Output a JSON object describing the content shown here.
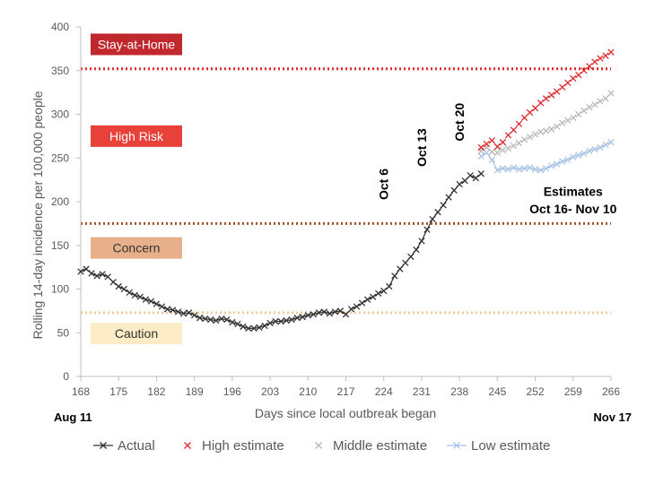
{
  "chart_data": {
    "type": "line",
    "xlabel": "Days since local outbreak began",
    "ylabel": "Rolling 14-day  incidence per 100,000 people",
    "xlim": [
      168,
      266
    ],
    "ylim": [
      0,
      400
    ],
    "x_ticks": [
      168,
      175,
      182,
      189,
      196,
      203,
      210,
      217,
      224,
      231,
      238,
      245,
      252,
      259,
      266
    ],
    "y_ticks": [
      0,
      50,
      100,
      150,
      200,
      250,
      300,
      350,
      400
    ],
    "grid": false,
    "legend_position": "bottom",
    "date_labels": {
      "start": "Aug 11",
      "end": "Nov 17"
    },
    "thresholds": [
      {
        "label": "Stay-at-Home",
        "value": 352,
        "line_color": "#e0262b",
        "box_color": "#c0282d",
        "text_color": "#ffffff",
        "label_y": 380
      },
      {
        "label": "High Risk",
        "value": 175,
        "line_color": "#a0522d",
        "box_color": "#e8413a",
        "text_color": "#ffffff",
        "label_y": 275
      },
      {
        "label": "Concern",
        "value": 73,
        "line_color": "#f3c9a0",
        "box_color": "#e8b08a",
        "text_color": "#333333",
        "label_y": 147
      },
      {
        "label": "Caution",
        "value": null,
        "line_color": null,
        "box_color": "#fbecc5",
        "text_color": "#333333",
        "label_y": 49
      }
    ],
    "annotations": [
      {
        "text": "Oct 6",
        "x": 224,
        "y": 220,
        "rotate": true
      },
      {
        "text": "Oct 13",
        "x": 231,
        "y": 262,
        "rotate": true
      },
      {
        "text": "Oct 20",
        "x": 238,
        "y": 291,
        "rotate": true
      },
      {
        "text": "Estimates",
        "x": 259,
        "y": 212,
        "rotate": false
      },
      {
        "text": "Oct 16- Nov 10",
        "x": 259,
        "y": 192,
        "rotate": false
      }
    ],
    "series": [
      {
        "name": "Actual",
        "color": "#333333",
        "marker": "x",
        "line": true,
        "x": [
          168,
          169,
          170,
          171,
          172,
          173,
          174,
          175,
          176,
          177,
          178,
          179,
          180,
          181,
          182,
          183,
          184,
          185,
          186,
          187,
          188,
          189,
          190,
          191,
          192,
          193,
          194,
          195,
          196,
          197,
          198,
          199,
          200,
          201,
          202,
          203,
          204,
          205,
          206,
          207,
          208,
          209,
          210,
          211,
          212,
          213,
          214,
          215,
          216,
          217,
          218,
          219,
          220,
          221,
          222,
          223,
          224,
          225,
          226,
          227,
          228,
          229,
          230,
          231,
          232,
          233,
          234,
          235,
          236,
          237,
          238,
          239,
          240,
          241,
          242
        ],
        "y": [
          120,
          123,
          118,
          115,
          117,
          114,
          108,
          103,
          100,
          96,
          93,
          91,
          88,
          86,
          83,
          80,
          77,
          76,
          74,
          72,
          73,
          70,
          67,
          66,
          65,
          64,
          66,
          65,
          62,
          60,
          57,
          55,
          55,
          56,
          58,
          61,
          63,
          63,
          64,
          65,
          67,
          68,
          70,
          71,
          73,
          74,
          72,
          74,
          75,
          71,
          77,
          80,
          84,
          88,
          91,
          95,
          98,
          103,
          115,
          123,
          130,
          137,
          145,
          155,
          168,
          180,
          188,
          196,
          205,
          213,
          220,
          224,
          230,
          227,
          232
        ]
      },
      {
        "name": "High estimate",
        "color": "#e0262b",
        "marker": "x",
        "line": false,
        "x": [
          242,
          243,
          244,
          245,
          246,
          247,
          248,
          249,
          250,
          251,
          252,
          253,
          254,
          255,
          256,
          257,
          258,
          259,
          260,
          261,
          262,
          263,
          264,
          265,
          266
        ],
        "y": [
          262,
          266,
          270,
          263,
          268,
          276,
          282,
          289,
          296,
          302,
          307,
          313,
          318,
          322,
          326,
          331,
          336,
          341,
          345,
          350,
          355,
          360,
          364,
          367,
          371
        ]
      },
      {
        "name": "Middle estimate",
        "color": "#b7b7b7",
        "marker": "x",
        "line": false,
        "x": [
          242,
          243,
          244,
          245,
          246,
          247,
          248,
          249,
          250,
          251,
          252,
          253,
          254,
          255,
          256,
          257,
          258,
          259,
          260,
          261,
          262,
          263,
          264,
          265,
          266
        ],
        "y": [
          258,
          262,
          257,
          256,
          259,
          261,
          264,
          267,
          271,
          274,
          277,
          280,
          281,
          283,
          286,
          290,
          293,
          296,
          300,
          304,
          308,
          311,
          315,
          318,
          324
        ]
      },
      {
        "name": "Low estimate",
        "color": "#a8c4e6",
        "marker": "x",
        "line": true,
        "x": [
          242,
          243,
          244,
          245,
          246,
          247,
          248,
          249,
          250,
          251,
          252,
          253,
          254,
          255,
          256,
          257,
          258,
          259,
          260,
          261,
          262,
          263,
          264,
          265,
          266
        ],
        "y": [
          252,
          256,
          248,
          236,
          238,
          237,
          239,
          237,
          238,
          239,
          237,
          236,
          238,
          241,
          243,
          246,
          248,
          251,
          253,
          255,
          258,
          260,
          262,
          265,
          268
        ]
      }
    ]
  }
}
